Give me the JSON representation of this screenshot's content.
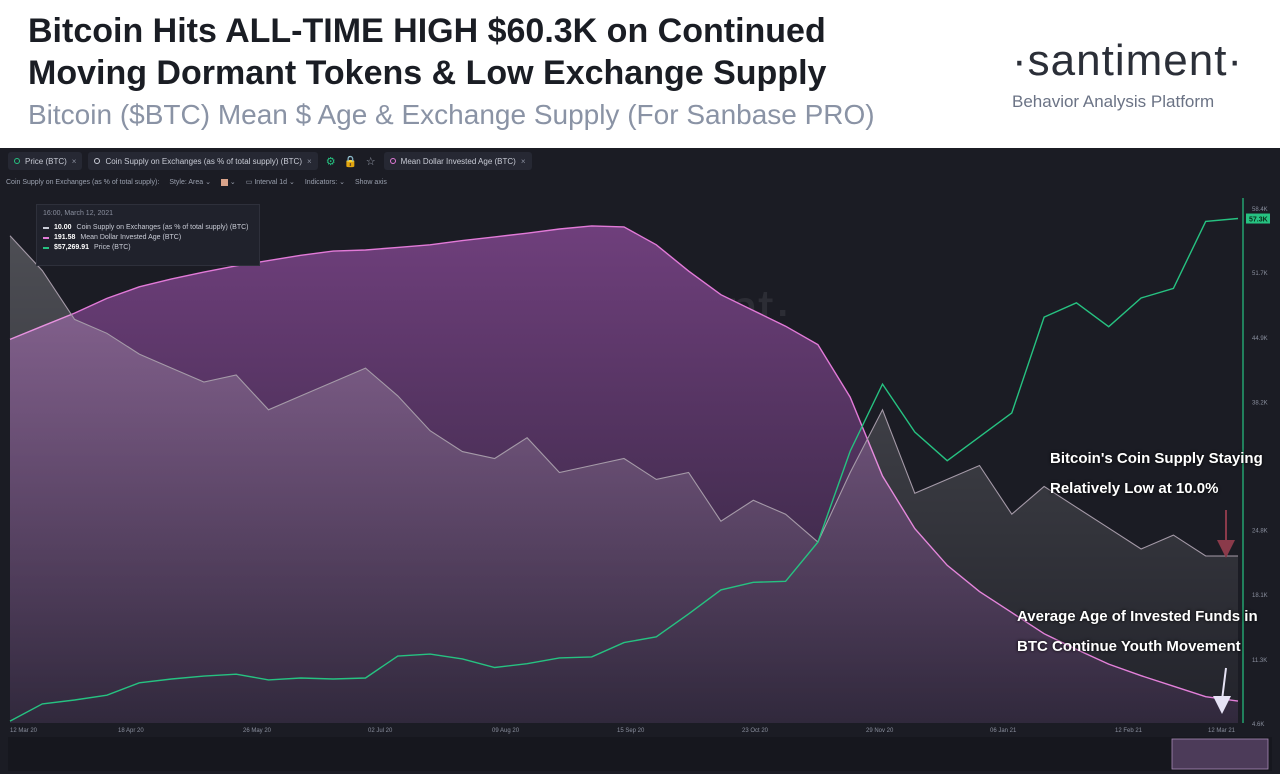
{
  "header": {
    "title_line1": "Bitcoin Hits ALL-TIME HIGH $60.3K on Continued",
    "title_line2": "Moving Dormant Tokens & Low Exchange Supply",
    "subtitle": "Bitcoin ($BTC) Mean $ Age & Exchange Supply (For Sanbase PRO)",
    "brand_name": "·santiment·",
    "brand_tagline": "Behavior Analysis Platform"
  },
  "toolbar": {
    "metrics": [
      {
        "label": "Price (BTC)",
        "color": "#26c281"
      },
      {
        "label": "Coin Supply on Exchanges (as % of total supply) (BTC)",
        "color": "#c9ccd6"
      },
      {
        "label": "Mean Dollar Invested Age (BTC)",
        "color": "#e27ad8"
      }
    ],
    "icons": [
      "gear-icon",
      "lock-icon",
      "star-icon"
    ]
  },
  "subbar": {
    "metric": "Coin Supply on Exchanges (as % of total supply):",
    "style": "Style: Area",
    "interval": "Interval 1d",
    "indicators": "Indicators:",
    "show_axis": "Show axis"
  },
  "tooltip": {
    "date": "16:00, March 12, 2021",
    "rows": [
      {
        "value": "10.00",
        "label": "Coin Supply on Exchanges (as % of total supply) (BTC)",
        "color": "#c9ccd6"
      },
      {
        "value": "191.58",
        "label": "Mean Dollar Invested Age (BTC)",
        "color": "#e27ad8"
      },
      {
        "value": "$57,269.91",
        "label": "Price (BTC)",
        "color": "#26c281"
      }
    ]
  },
  "watermark": "·santiment·",
  "annotations": {
    "supply_line1": "Bitcoin's Coin Supply Staying",
    "supply_line2": "Relatively Low at 10.0%",
    "age_line1": "Average Age of Invested Funds in",
    "age_line2": "BTC Continue Youth Movement"
  },
  "chart_data": {
    "type": "line",
    "x_labels": [
      "12 Mar 20",
      "18 Apr 20",
      "26 May 20",
      "02 Jul 20",
      "09 Aug 20",
      "15 Sep 20",
      "23 Oct 20",
      "29 Nov 20",
      "06 Jan 21",
      "12 Feb 21",
      "12 Mar 21"
    ],
    "y_ticks_price": [
      "58.4K",
      "51.7K",
      "44.9K",
      "38.2K",
      "24.8K",
      "18.1K",
      "11.3K",
      "4.6K"
    ],
    "price_badge": "57.3K",
    "grid": false,
    "series": [
      {
        "name": "Price (BTC)",
        "color": "#26c281",
        "values": [
          4.8,
          6.6,
          7.0,
          7.5,
          8.8,
          9.2,
          9.5,
          9.7,
          9.1,
          9.3,
          9.2,
          9.3,
          11.6,
          11.8,
          11.3,
          10.4,
          10.8,
          11.4,
          11.5,
          13.0,
          13.6,
          16.0,
          18.5,
          19.3,
          19.4,
          23.5,
          33.0,
          40.0,
          35.0,
          32.0,
          34.5,
          37.0,
          47.0,
          48.5,
          46.0,
          49.0,
          50.0,
          57.0,
          57.3
        ]
      },
      {
        "name": "Coin Supply on Exchanges (as % of total supply) (BTC)",
        "color": "#c9ccd6",
        "values": [
          14.6,
          14.1,
          13.4,
          13.2,
          12.9,
          12.7,
          12.5,
          12.6,
          12.1,
          12.3,
          12.5,
          12.7,
          12.3,
          11.8,
          11.5,
          11.4,
          11.7,
          11.2,
          11.3,
          11.4,
          11.1,
          11.2,
          10.5,
          10.8,
          10.6,
          10.2,
          11.2,
          12.1,
          10.9,
          11.1,
          11.3,
          10.6,
          11.0,
          10.7,
          10.4,
          10.1,
          10.3,
          10.0,
          10.0
        ]
      },
      {
        "name": "Mean Dollar Invested Age (BTC)",
        "color": "#e27ad8",
        "values": [
          880,
          905,
          930,
          958,
          980,
          995,
          1008,
          1020,
          1030,
          1040,
          1048,
          1050,
          1055,
          1060,
          1068,
          1075,
          1082,
          1090,
          1096,
          1094,
          1060,
          1010,
          965,
          935,
          905,
          870,
          770,
          620,
          520,
          450,
          400,
          360,
          320,
          290,
          262,
          240,
          220,
          200,
          191.58
        ]
      }
    ]
  }
}
